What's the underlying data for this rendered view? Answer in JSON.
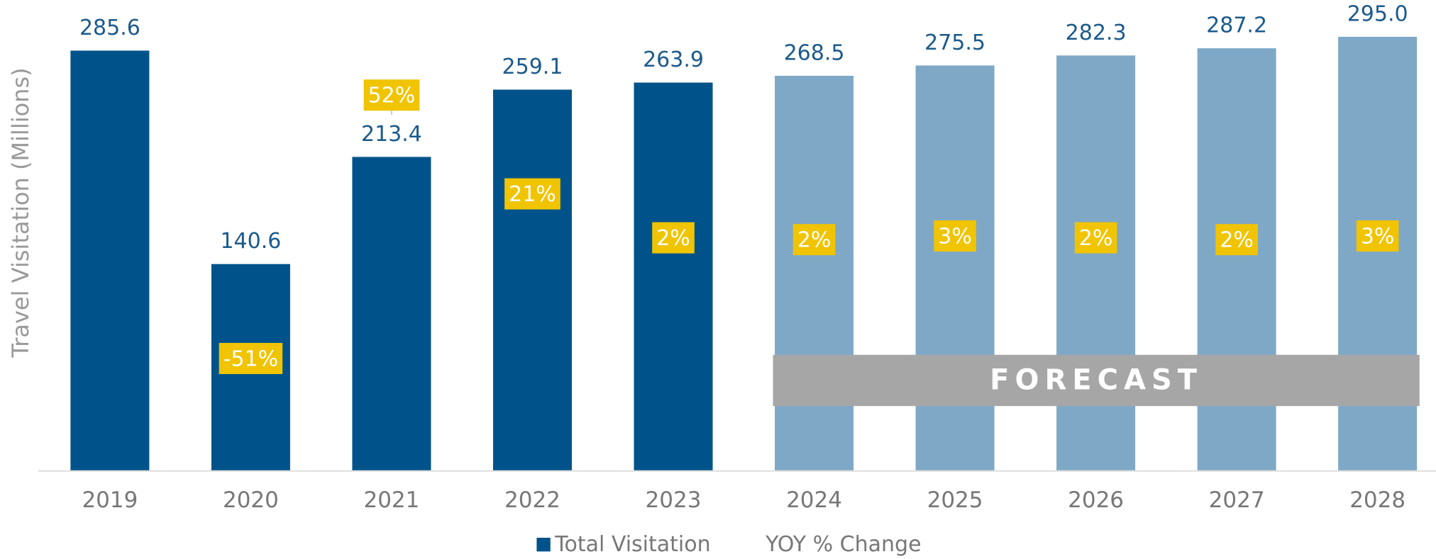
{
  "chart_data": {
    "type": "bar",
    "y_axis_label": "Travel Visitation (Millions)",
    "categories": [
      "2019",
      "2020",
      "2021",
      "2022",
      "2023",
      "2024",
      "2025",
      "2026",
      "2027",
      "2028"
    ],
    "series": [
      {
        "name": "Total Visitation",
        "color": "#00538a",
        "colors": [
          "#00538a",
          "#00538a",
          "#00538a",
          "#00538a",
          "#00538a",
          "#7fa8c7",
          "#7fa8c7",
          "#7fa8c7",
          "#7fa8c7",
          "#7fa8c7"
        ],
        "values": [
          285.6,
          140.6,
          213.4,
          259.1,
          263.9,
          268.5,
          275.5,
          282.3,
          287.2,
          295.0
        ],
        "value_labels": [
          "285.6",
          "140.6",
          "213.4",
          "259.1",
          "263.9",
          "268.5",
          "275.5",
          "282.3",
          "287.2",
          "295.0"
        ]
      },
      {
        "name": "YOY % Change",
        "color": "#f0c400",
        "values": [
          null,
          -51,
          52,
          21,
          2,
          2,
          3,
          2,
          2,
          3
        ],
        "value_labels": [
          null,
          "-51%",
          "52%",
          "21%",
          "2%",
          "2%",
          "3%",
          "2%",
          "2%",
          "3%"
        ]
      }
    ],
    "annotation": "FORECAST",
    "ylim": [
      0,
      320
    ]
  }
}
